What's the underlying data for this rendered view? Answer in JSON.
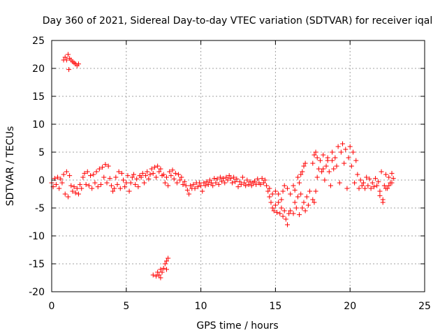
{
  "chart_data": {
    "type": "scatter",
    "title": "Day 360 of 2021, Sidereal Day-to-day VTEC variation (SDTVAR) for receiver iqal",
    "xlabel": "GPS time / hours",
    "ylabel": "SDTVAR / TECUs",
    "xlim": [
      0,
      25
    ],
    "ylim": [
      -20,
      25
    ],
    "xticks": [
      0,
      5,
      10,
      15,
      20,
      25
    ],
    "yticks": [
      -20,
      -15,
      -10,
      -5,
      0,
      5,
      10,
      15,
      20,
      25
    ],
    "xtick_labels": [
      "0",
      "5",
      "10",
      "15",
      "20",
      "25"
    ],
    "ytick_labels": [
      "-20",
      "-15",
      "-10",
      "-5",
      "0",
      "5",
      "10",
      "15",
      "20",
      "25"
    ],
    "grid": true,
    "marker": "+",
    "color": "#ff0000",
    "series": [
      {
        "name": "SDTVAR",
        "points": [
          [
            0.0,
            -0.5
          ],
          [
            0.1,
            -1.2
          ],
          [
            0.2,
            0.3
          ],
          [
            0.3,
            -0.8
          ],
          [
            0.4,
            0.5
          ],
          [
            0.5,
            -1.5
          ],
          [
            0.6,
            0.2
          ],
          [
            0.7,
            -0.5
          ],
          [
            0.8,
            1.0
          ],
          [
            0.9,
            -2.5
          ],
          [
            1.0,
            1.5
          ],
          [
            1.1,
            -3.0
          ],
          [
            1.2,
            0.8
          ],
          [
            1.3,
            -1.0
          ],
          [
            1.4,
            -2.0
          ],
          [
            1.5,
            -1.2
          ],
          [
            1.6,
            -2.3
          ],
          [
            1.7,
            -1.5
          ],
          [
            1.8,
            -2.5
          ],
          [
            1.9,
            -0.8
          ],
          [
            2.0,
            -1.5
          ],
          [
            2.1,
            0.5
          ],
          [
            2.2,
            1.2
          ],
          [
            2.3,
            -0.8
          ],
          [
            2.4,
            1.5
          ],
          [
            2.5,
            -1.0
          ],
          [
            2.6,
            0.8
          ],
          [
            2.7,
            -1.5
          ],
          [
            2.8,
            1.0
          ],
          [
            2.9,
            -0.5
          ],
          [
            3.0,
            1.5
          ],
          [
            3.1,
            -1.2
          ],
          [
            3.2,
            2.0
          ],
          [
            3.3,
            -0.8
          ],
          [
            3.4,
            2.3
          ],
          [
            3.5,
            0.5
          ],
          [
            3.6,
            2.8
          ],
          [
            3.7,
            -0.5
          ],
          [
            3.8,
            2.5
          ],
          [
            3.9,
            0.3
          ],
          [
            4.0,
            -1.0
          ],
          [
            4.1,
            -2.0
          ],
          [
            4.2,
            -1.5
          ],
          [
            4.3,
            0.5
          ],
          [
            4.4,
            -0.8
          ],
          [
            4.5,
            1.5
          ],
          [
            4.6,
            -1.5
          ],
          [
            4.7,
            1.2
          ],
          [
            4.8,
            0.0
          ],
          [
            4.9,
            -1.2
          ],
          [
            5.0,
            -0.5
          ],
          [
            5.1,
            0.8
          ],
          [
            5.2,
            -2.0
          ],
          [
            5.3,
            -0.5
          ],
          [
            5.4,
            0.5
          ],
          [
            5.5,
            1.0
          ],
          [
            5.6,
            -0.8
          ],
          [
            5.7,
            0.2
          ],
          [
            5.8,
            -1.2
          ],
          [
            5.9,
            0.8
          ],
          [
            6.0,
            0.5
          ],
          [
            6.1,
            1.2
          ],
          [
            6.2,
            -0.5
          ],
          [
            6.3,
            0.8
          ],
          [
            6.4,
            1.5
          ],
          [
            6.5,
            0.2
          ],
          [
            6.6,
            1.0
          ],
          [
            6.7,
            2.0
          ],
          [
            6.8,
            1.2
          ],
          [
            6.9,
            2.3
          ],
          [
            7.0,
            0.5
          ],
          [
            7.1,
            2.5
          ],
          [
            7.2,
            1.5
          ],
          [
            7.3,
            2.0
          ],
          [
            7.4,
            0.8
          ],
          [
            7.5,
            1.0
          ],
          [
            7.6,
            -0.5
          ],
          [
            7.7,
            0.5
          ],
          [
            7.8,
            -1.0
          ],
          [
            7.9,
            1.5
          ],
          [
            8.0,
            0.8
          ],
          [
            8.1,
            1.8
          ],
          [
            8.2,
            0.2
          ],
          [
            8.3,
            1.2
          ],
          [
            8.4,
            -0.5
          ],
          [
            8.5,
            1.0
          ],
          [
            8.6,
            0.0
          ],
          [
            8.7,
            0.5
          ],
          [
            8.8,
            -0.8
          ],
          [
            8.9,
            -0.3
          ],
          [
            9.0,
            -1.0
          ],
          [
            9.1,
            -1.8
          ],
          [
            9.2,
            -2.5
          ],
          [
            9.3,
            -1.0
          ],
          [
            9.4,
            -1.5
          ],
          [
            9.5,
            -0.8
          ],
          [
            9.6,
            -1.5
          ],
          [
            9.7,
            -0.5
          ],
          [
            9.8,
            -1.2
          ],
          [
            9.9,
            -0.5
          ],
          [
            10.0,
            -1.0
          ],
          [
            10.1,
            -2.0
          ],
          [
            10.2,
            -0.5
          ],
          [
            10.3,
            -1.0
          ],
          [
            10.4,
            -0.3
          ],
          [
            10.5,
            -0.8
          ],
          [
            10.6,
            0.0
          ],
          [
            10.7,
            -0.5
          ],
          [
            10.8,
            -1.0
          ],
          [
            10.9,
            0.3
          ],
          [
            11.0,
            -0.5
          ],
          [
            11.1,
            0.2
          ],
          [
            11.2,
            -0.8
          ],
          [
            11.3,
            0.5
          ],
          [
            11.4,
            -0.2
          ],
          [
            11.5,
            0.3
          ],
          [
            11.6,
            -0.5
          ],
          [
            11.7,
            0.5
          ],
          [
            11.8,
            0.0
          ],
          [
            11.9,
            0.8
          ],
          [
            12.0,
            0.3
          ],
          [
            12.1,
            -0.5
          ],
          [
            12.2,
            0.5
          ],
          [
            12.3,
            -0.3
          ],
          [
            12.4,
            0.2
          ],
          [
            12.5,
            -1.2
          ],
          [
            12.6,
            -0.3
          ],
          [
            12.7,
            -0.8
          ],
          [
            12.8,
            0.5
          ],
          [
            12.9,
            -0.5
          ],
          [
            13.0,
            -1.0
          ],
          [
            13.1,
            0.0
          ],
          [
            13.2,
            -0.8
          ],
          [
            13.3,
            -0.3
          ],
          [
            13.4,
            -1.0
          ],
          [
            13.5,
            -0.5
          ],
          [
            13.6,
            -0.2
          ],
          [
            13.7,
            -0.8
          ],
          [
            13.8,
            0.2
          ],
          [
            13.9,
            -0.5
          ],
          [
            14.0,
            -0.8
          ],
          [
            14.1,
            0.3
          ],
          [
            14.2,
            -0.5
          ],
          [
            14.3,
            0.0
          ],
          [
            14.4,
            -1.0
          ],
          [
            14.5,
            -2.0
          ],
          [
            14.6,
            -3.0
          ],
          [
            14.7,
            -4.0
          ],
          [
            14.8,
            -5.0
          ],
          [
            14.9,
            -5.5
          ],
          [
            15.0,
            -4.5
          ],
          [
            15.1,
            -5.8
          ],
          [
            15.2,
            -4.0
          ],
          [
            15.3,
            -6.0
          ],
          [
            15.4,
            -5.0
          ],
          [
            15.5,
            -6.5
          ],
          [
            15.6,
            -5.5
          ],
          [
            15.7,
            -7.0
          ],
          [
            15.8,
            -8.0
          ],
          [
            15.9,
            -6.0
          ],
          [
            14.6,
            -1.5
          ],
          [
            14.8,
            -2.5
          ],
          [
            15.0,
            -2.0
          ],
          [
            15.2,
            -2.5
          ],
          [
            15.4,
            -3.5
          ],
          [
            15.5,
            -2.0
          ],
          [
            15.6,
            -1.0
          ],
          [
            15.8,
            -1.5
          ],
          [
            16.0,
            -2.5
          ],
          [
            16.2,
            -1.0
          ],
          [
            16.3,
            -1.8
          ],
          [
            16.5,
            0.5
          ],
          [
            16.6,
            -0.5
          ],
          [
            16.7,
            1.0
          ],
          [
            16.8,
            1.5
          ],
          [
            16.9,
            2.5
          ],
          [
            17.0,
            3.0
          ],
          [
            16.0,
            -5.5
          ],
          [
            16.2,
            -6.0
          ],
          [
            16.4,
            -5.0
          ],
          [
            16.6,
            -6.2
          ],
          [
            16.8,
            -5.0
          ],
          [
            16.9,
            -4.0
          ],
          [
            17.0,
            -5.5
          ],
          [
            17.1,
            -3.0
          ],
          [
            17.2,
            -4.5
          ],
          [
            17.3,
            -2.0
          ],
          [
            16.3,
            -4.0
          ],
          [
            16.5,
            -3.0
          ],
          [
            16.7,
            -2.5
          ],
          [
            17.5,
            -3.5
          ],
          [
            17.6,
            -4.0
          ],
          [
            17.7,
            -2.0
          ],
          [
            17.8,
            0.5
          ],
          [
            17.5,
            3.0
          ],
          [
            17.6,
            4.5
          ],
          [
            17.7,
            5.0
          ],
          [
            17.8,
            4.0
          ],
          [
            17.9,
            2.0
          ],
          [
            18.0,
            3.5
          ],
          [
            18.1,
            1.5
          ],
          [
            18.2,
            4.5
          ],
          [
            18.3,
            0.0
          ],
          [
            18.4,
            2.5
          ],
          [
            18.5,
            4.0
          ],
          [
            18.6,
            1.5
          ],
          [
            18.7,
            -1.0
          ],
          [
            18.8,
            3.5
          ],
          [
            18.9,
            2.0
          ],
          [
            18.2,
            2.0
          ],
          [
            18.5,
            3.5
          ],
          [
            18.8,
            5.0
          ],
          [
            19.0,
            4.0
          ],
          [
            19.1,
            2.5
          ],
          [
            19.2,
            6.0
          ],
          [
            19.3,
            -0.5
          ],
          [
            19.4,
            5.0
          ],
          [
            19.5,
            6.5
          ],
          [
            19.6,
            3.0
          ],
          [
            19.7,
            5.5
          ],
          [
            19.8,
            -1.5
          ],
          [
            19.9,
            4.0
          ],
          [
            20.0,
            6.0
          ],
          [
            20.1,
            2.5
          ],
          [
            20.2,
            5.0
          ],
          [
            20.3,
            -0.5
          ],
          [
            20.4,
            3.5
          ],
          [
            20.5,
            1.0
          ],
          [
            20.6,
            -1.5
          ],
          [
            20.7,
            0.0
          ],
          [
            20.8,
            -1.0
          ],
          [
            20.9,
            -0.5
          ],
          [
            21.0,
            -1.5
          ],
          [
            21.1,
            0.5
          ],
          [
            21.2,
            -1.0
          ],
          [
            21.3,
            0.2
          ],
          [
            21.4,
            -1.5
          ],
          [
            21.5,
            -0.5
          ],
          [
            21.6,
            -1.2
          ],
          [
            21.7,
            0.3
          ],
          [
            21.8,
            -1.0
          ],
          [
            21.9,
            -0.3
          ],
          [
            22.0,
            -2.0
          ],
          [
            22.1,
            1.5
          ],
          [
            22.2,
            -3.5
          ],
          [
            22.3,
            -1.0
          ],
          [
            22.4,
            1.0
          ],
          [
            22.5,
            -1.5
          ],
          [
            22.6,
            0.5
          ],
          [
            22.7,
            -0.5
          ],
          [
            22.8,
            1.2
          ],
          [
            22.9,
            0.3
          ],
          [
            22.0,
            -2.8
          ],
          [
            22.2,
            -4.0
          ],
          [
            22.4,
            -1.5
          ],
          [
            22.6,
            -1.0
          ],
          [
            22.8,
            -0.5
          ],
          [
            0.8,
            21.5
          ],
          [
            0.9,
            22.0
          ],
          [
            1.0,
            21.5
          ],
          [
            1.1,
            22.5
          ],
          [
            1.2,
            21.8
          ],
          [
            1.15,
            19.8
          ],
          [
            1.3,
            21.5
          ],
          [
            1.4,
            21.2
          ],
          [
            1.5,
            21.0
          ],
          [
            1.6,
            20.8
          ],
          [
            1.7,
            20.5
          ],
          [
            1.8,
            20.8
          ],
          [
            6.8,
            -17.0
          ],
          [
            7.0,
            -17.2
          ],
          [
            7.1,
            -16.5
          ],
          [
            7.2,
            -17.0
          ],
          [
            7.3,
            -16.0
          ],
          [
            7.4,
            -16.5
          ],
          [
            7.5,
            -15.8
          ],
          [
            7.6,
            -15.0
          ],
          [
            7.7,
            -14.5
          ],
          [
            7.8,
            -14.0
          ],
          [
            7.7,
            -16.0
          ],
          [
            7.3,
            -17.5
          ]
        ]
      }
    ]
  }
}
